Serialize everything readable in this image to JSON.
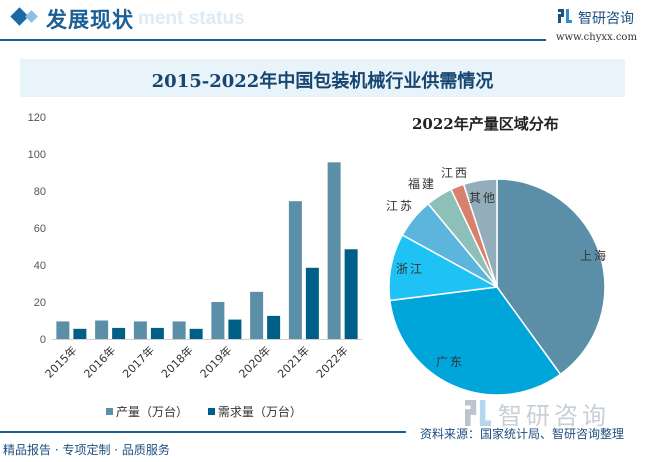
{
  "header": {
    "section_title": "发展现状",
    "section_subtitle": "ment status",
    "brand_name": "智研咨询",
    "brand_url": "www.chyxx.com"
  },
  "chart_title": "2015-2022年中国包装机械行业供需情况",
  "chart_data": [
    {
      "type": "bar",
      "title": "2015-2022年中国包装机械行业供需情况",
      "categories": [
        "2015年",
        "2016年",
        "2017年",
        "2018年",
        "2019年",
        "2020年",
        "2021年",
        "2022年"
      ],
      "series": [
        {
          "name": "产量（万台）",
          "color": "#5b8fa8",
          "values": [
            9.5,
            10,
            9.5,
            9.5,
            20,
            25.5,
            74.5,
            95.5
          ]
        },
        {
          "name": "需求量（万台）",
          "color": "#005f87",
          "values": [
            5.5,
            6,
            6,
            5.5,
            10.5,
            12.5,
            38.5,
            48.5
          ]
        }
      ],
      "yticks": [
        "0",
        "20",
        "40",
        "60",
        "80",
        "100",
        "120"
      ],
      "ylim": [
        0,
        120
      ],
      "xlabel": "",
      "ylabel": "",
      "grid": false,
      "legend": "bottom"
    },
    {
      "type": "pie",
      "title": "2022年产量区域分布",
      "labels": [
        "上海",
        "广东",
        "浙江",
        "江苏",
        "福建",
        "江西",
        "其他"
      ],
      "values": [
        40,
        33,
        10,
        6,
        4,
        2,
        5
      ],
      "colors": [
        "#5b8fa8",
        "#00a6d9",
        "#1ec2f5",
        "#5cb5dc",
        "#8cc0b8",
        "#d8806c",
        "#93adbb"
      ]
    }
  ],
  "footer": {
    "tagline": "精品报告 · 专项定制 · 品质服务",
    "source": "资料来源：国家统计局、智研咨询整理",
    "watermark": "智研咨询"
  }
}
